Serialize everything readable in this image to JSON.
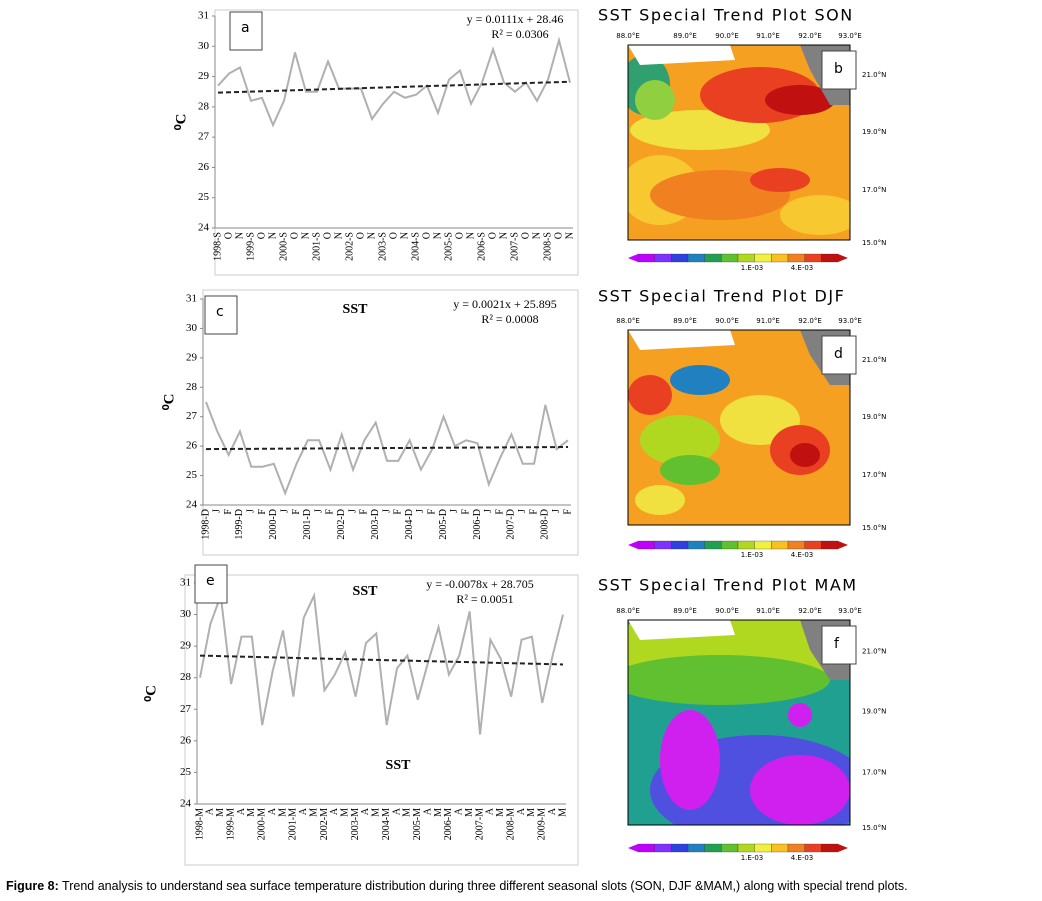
{
  "chart_data": [
    {
      "type": "line",
      "letter": "a",
      "ylabel": "⁰C",
      "equation": "y = 0.0111x + 28.46",
      "r2": "R² = 0.0306",
      "annotations": [],
      "categories": [
        "1998-S",
        "O",
        "N",
        "1999-S",
        "O",
        "N",
        "2000-S",
        "O",
        "N",
        "2001-S",
        "O",
        "N",
        "2002-S",
        "O",
        "N",
        "2003-S",
        "O",
        "N",
        "2004-S",
        "O",
        "N",
        "2005-S",
        "O",
        "N",
        "2006-S",
        "O",
        "N",
        "2007-S",
        "O",
        "N",
        "2008-S",
        "O",
        "N"
      ],
      "values": [
        28.7,
        29.1,
        29.3,
        28.2,
        28.3,
        27.4,
        28.2,
        29.8,
        28.5,
        28.5,
        29.5,
        28.6,
        28.6,
        28.6,
        27.6,
        28.1,
        28.5,
        28.3,
        28.4,
        28.7,
        27.8,
        28.9,
        29.2,
        28.1,
        28.8,
        29.9,
        28.8,
        28.5,
        28.8,
        28.2,
        28.9,
        30.2,
        28.8
      ],
      "trend": [
        28.47,
        28.83
      ],
      "color": "#b0b0b0",
      "ylim": [
        24,
        31
      ],
      "yticks": [
        24,
        25,
        26,
        27,
        28,
        29,
        30,
        31
      ]
    },
    {
      "type": "line",
      "letter": "c",
      "ylabel": "⁰C",
      "equation": "y = 0.0021x + 25.895",
      "r2": "R² = 0.0008",
      "annotations": [
        "SST"
      ],
      "categories": [
        "1998-D",
        "J",
        "F",
        "1999-D",
        "J",
        "F",
        "2000-D",
        "J",
        "F",
        "2001-D",
        "J",
        "F",
        "2002-D",
        "J",
        "F",
        "2003-D",
        "J",
        "F",
        "2004-D",
        "J",
        "F",
        "2005-D",
        "J",
        "F",
        "2006-D",
        "J",
        "F",
        "2007-D",
        "J",
        "F",
        "2008-D",
        "J",
        "F"
      ],
      "values": [
        27.5,
        26.5,
        25.7,
        26.5,
        25.3,
        25.3,
        25.4,
        24.4,
        25.4,
        26.2,
        26.2,
        25.2,
        26.4,
        25.2,
        26.2,
        26.8,
        25.5,
        25.5,
        26.2,
        25.2,
        25.9,
        27.0,
        26.0,
        26.2,
        26.1,
        24.7,
        25.6,
        26.4,
        25.4,
        25.4,
        27.4,
        25.9,
        26.2
      ],
      "trend": [
        25.9,
        25.97
      ],
      "color": "#b0b0b0",
      "ylim": [
        24,
        31
      ],
      "yticks": [
        24,
        25,
        26,
        27,
        28,
        29,
        30,
        31
      ]
    },
    {
      "type": "line",
      "letter": "e",
      "ylabel": "⁰C",
      "equation": "y = -0.0078x + 28.705",
      "r2": "R² = 0.0051",
      "annotations": [
        "SST",
        "SST"
      ],
      "categories": [
        "1998-M",
        "A",
        "M",
        "1999-M",
        "A",
        "M",
        "2000-M",
        "A",
        "M",
        "2001-M",
        "A",
        "M",
        "2002-M",
        "A",
        "M",
        "2003-M",
        "A",
        "M",
        "2004-M",
        "A",
        "M",
        "2005-M",
        "A",
        "M",
        "2006-M",
        "A",
        "M",
        "2007-M",
        "A",
        "M",
        "2008-M",
        "A",
        "M",
        "2009-M",
        "A",
        "M"
      ],
      "values": [
        28.0,
        29.7,
        30.6,
        27.8,
        29.3,
        29.3,
        26.5,
        28.2,
        29.5,
        27.4,
        29.9,
        30.6,
        27.6,
        28.1,
        28.8,
        27.4,
        29.1,
        29.4,
        26.5,
        28.3,
        28.7,
        27.3,
        28.5,
        29.6,
        28.1,
        28.7,
        30.1,
        26.2,
        29.2,
        28.6,
        27.4,
        29.2,
        29.3,
        27.2,
        28.7,
        30.0
      ],
      "trend": [
        28.7,
        28.42
      ],
      "color": "#b0b0b0",
      "ylim": [
        24,
        31
      ],
      "yticks": [
        24,
        25,
        26,
        27,
        28,
        29,
        30,
        31
      ]
    }
  ],
  "maps": [
    {
      "title": "SST Special Trend Plot SON",
      "letter": "b"
    },
    {
      "title": "SST Special Trend Plot DJF",
      "letter": "d"
    },
    {
      "title": "SST Special Trend Plot MAM",
      "letter": "f"
    }
  ],
  "lon_labels": [
    "88.0°E",
    "89.0°E",
    "90.0°E",
    "91.0°E",
    "92.0°E",
    "93.0°E"
  ],
  "lat_labels": [
    "21.0°N",
    "19.0°N",
    "17.0°N",
    "15.0°N"
  ],
  "colorbar_labels": [
    "1.E-03",
    "4.E-03"
  ],
  "caption": {
    "label": "Figure 8:",
    "text": " Trend analysis to understand sea surface temperature distribution during three different seasonal slots (SON, DJF &MAM,) along with special trend plots."
  }
}
